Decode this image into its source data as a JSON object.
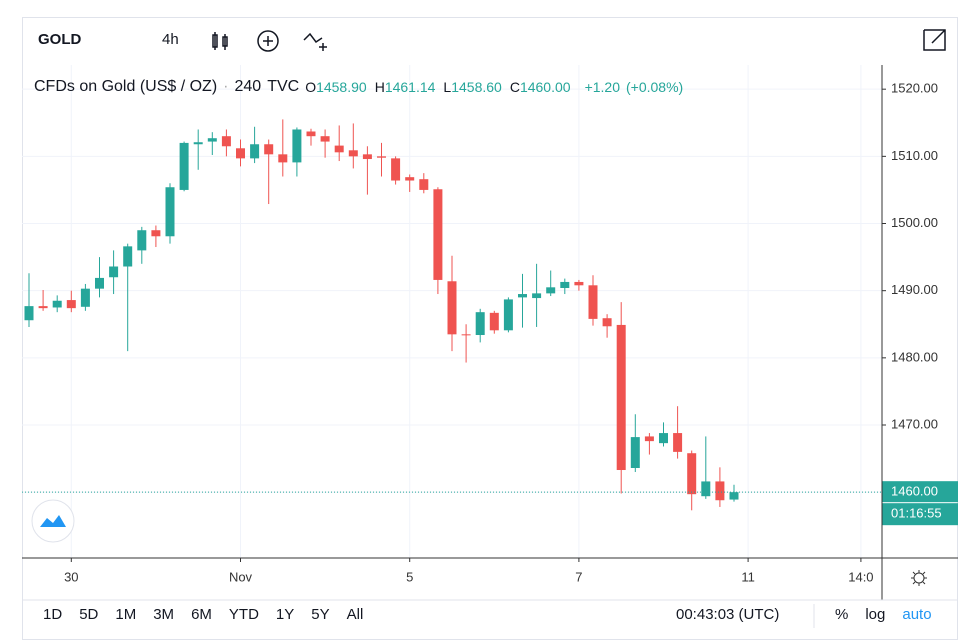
{
  "toolbar": {
    "symbol": "GOLD",
    "interval": "4h"
  },
  "legend": {
    "title": "CFDs on Gold (US$ / OZ)",
    "interval": "240",
    "exchange": "TVC",
    "ohlc": [
      {
        "label": "O",
        "value": "1458.90"
      },
      {
        "label": "H",
        "value": "1461.14"
      },
      {
        "label": "L",
        "value": "1458.60"
      },
      {
        "label": "C",
        "value": "1460.00"
      }
    ],
    "change": "+1.20",
    "change_pct": "(+0.08%)"
  },
  "chart_data": {
    "type": "candlestick",
    "open": [
      1485.6,
      1487.7,
      1487.5,
      1488.6,
      1487.6,
      1490.3,
      1492.0,
      1493.6,
      1496.0,
      1499.0,
      1498.1,
      1505.0,
      1511.8,
      1512.2,
      1513.0,
      1511.2,
      1509.7,
      1511.8,
      1510.3,
      1509.1,
      1513.7,
      1513.0,
      1511.6,
      1510.9,
      1510.3,
      1510.0,
      1509.7,
      1506.9,
      1506.6,
      1505.1,
      1491.4,
      1483.5,
      1483.4,
      1486.7,
      1484.1,
      1489.0,
      1488.9,
      1489.6,
      1490.4,
      1491.3,
      1490.8,
      1485.9,
      1484.9,
      1463.6,
      1468.3,
      1467.3,
      1468.8,
      1465.8,
      1459.4,
      1461.6,
      1458.9
    ],
    "high": [
      1492.6,
      1490.1,
      1489.3,
      1490.0,
      1491.0,
      1495.0,
      1496.0,
      1497.0,
      1499.5,
      1499.7,
      1506.0,
      1512.2,
      1514.0,
      1513.6,
      1514.0,
      1512.5,
      1514.4,
      1512.5,
      1515.5,
      1514.3,
      1514.1,
      1514.0,
      1514.6,
      1514.9,
      1511.5,
      1512.0,
      1510.0,
      1507.3,
      1507.5,
      1505.4,
      1495.2,
      1485.0,
      1487.3,
      1487.0,
      1489.0,
      1492.5,
      1494.0,
      1493.0,
      1491.8,
      1491.6,
      1492.3,
      1486.5,
      1488.3,
      1471.6,
      1468.8,
      1470.4,
      1472.8,
      1466.2,
      1468.3,
      1463.7,
      1461.1
    ],
    "low": [
      1484.6,
      1487.0,
      1486.8,
      1486.8,
      1487.0,
      1489.0,
      1489.5,
      1481.0,
      1494.0,
      1496.5,
      1497.0,
      1504.8,
      1508.0,
      1510.2,
      1510.0,
      1508.5,
      1509.0,
      1502.9,
      1507.0,
      1507.0,
      1511.6,
      1509.8,
      1509.3,
      1508.2,
      1504.3,
      1507.0,
      1505.8,
      1504.7,
      1504.5,
      1489.5,
      1481.0,
      1479.3,
      1482.3,
      1483.6,
      1483.8,
      1484.5,
      1484.6,
      1489.2,
      1489.5,
      1490.0,
      1484.8,
      1483.0,
      1459.8,
      1463.0,
      1465.6,
      1466.8,
      1465.0,
      1457.3,
      1459.0,
      1457.8,
      1458.6
    ],
    "close": [
      1487.7,
      1487.4,
      1488.5,
      1487.4,
      1490.3,
      1491.9,
      1493.6,
      1496.6,
      1499.0,
      1498.1,
      1505.4,
      1512.0,
      1512.1,
      1512.7,
      1511.5,
      1509.7,
      1511.8,
      1510.3,
      1509.1,
      1514.0,
      1513.0,
      1512.2,
      1510.6,
      1510.0,
      1509.6,
      1509.8,
      1506.4,
      1506.4,
      1505.0,
      1491.6,
      1483.5,
      1483.4,
      1486.8,
      1484.1,
      1488.7,
      1489.5,
      1489.6,
      1490.5,
      1491.3,
      1490.8,
      1485.8,
      1484.7,
      1463.3,
      1468.2,
      1467.6,
      1468.8,
      1466.0,
      1459.7,
      1461.6,
      1458.8,
      1460.0
    ],
    "up_color": "#26a69a",
    "down_color": "#ef5350",
    "ylim": [
      1450.2,
      1523.6
    ],
    "yticks": [
      {
        "value": 1460,
        "label": "1460.00"
      },
      {
        "value": 1470,
        "label": "1470.00"
      },
      {
        "value": 1480,
        "label": "1480.00"
      },
      {
        "value": 1490,
        "label": "1490.00"
      },
      {
        "value": 1500,
        "label": "1500.00"
      },
      {
        "value": 1510,
        "label": "1510.00"
      },
      {
        "value": 1520,
        "label": "1520.00"
      }
    ],
    "xticks": [
      {
        "value": 3,
        "label": "30"
      },
      {
        "value": 15,
        "label": "Nov"
      },
      {
        "value": 27,
        "label": "5"
      },
      {
        "value": 39,
        "label": "7"
      },
      {
        "value": 51,
        "label": "11"
      },
      {
        "value": 59,
        "label": "14:0"
      }
    ],
    "last_price": {
      "value": 1460,
      "label": "1460.00"
    },
    "countdown": "01:16:55",
    "grid": true
  },
  "bottom_bar": {
    "ranges": [
      "1D",
      "5D",
      "1M",
      "3M",
      "6M",
      "YTD",
      "1Y",
      "5Y",
      "All"
    ],
    "clock": "00:43:03 (UTC)",
    "options": [
      "%",
      "log",
      "auto"
    ]
  }
}
